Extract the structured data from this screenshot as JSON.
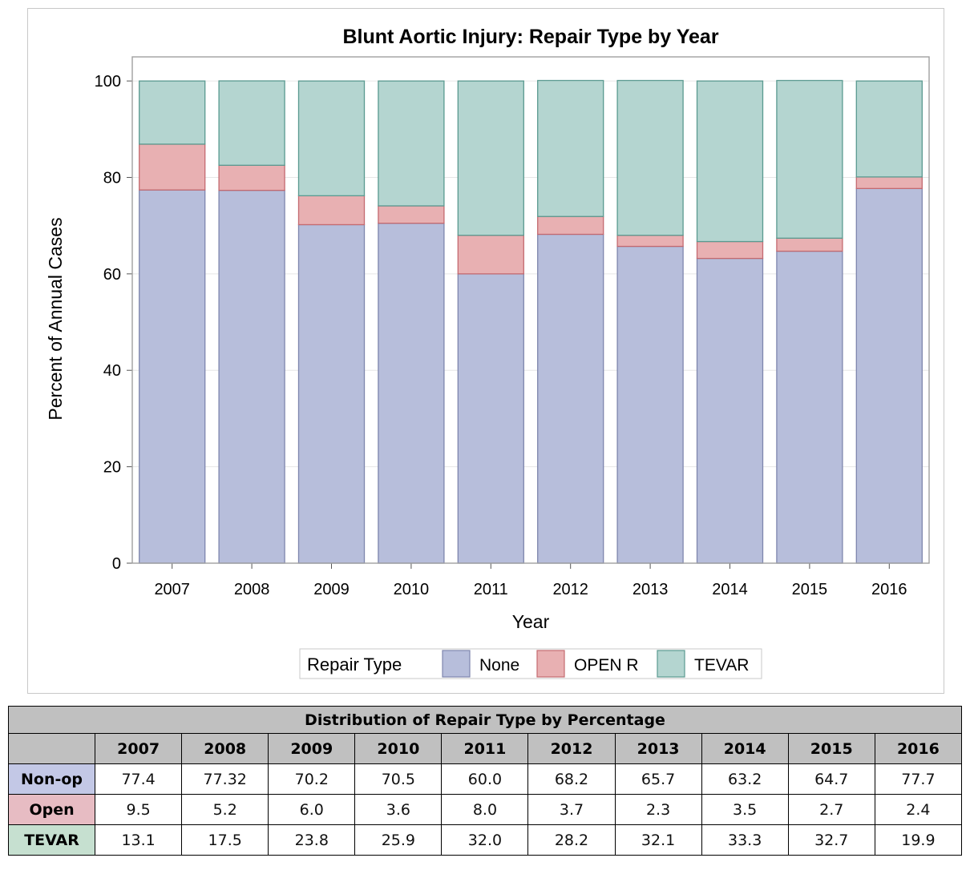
{
  "chart_data": {
    "type": "bar",
    "stacked": true,
    "title": "Blunt Aortic Injury: Repair Type by Year",
    "xlabel": "Year",
    "ylabel": "Percent of Annual Cases",
    "ylim": [
      0,
      105
    ],
    "yticks": [
      0,
      20,
      40,
      60,
      80,
      100
    ],
    "grid": true,
    "legend_title": "Repair Type",
    "legend_position": "bottom",
    "categories": [
      "2007",
      "2008",
      "2009",
      "2010",
      "2011",
      "2012",
      "2013",
      "2014",
      "2015",
      "2016"
    ],
    "series": [
      {
        "name": "None",
        "color": "#b7bedb",
        "stroke": "#7e86ad",
        "values": [
          77.4,
          77.32,
          70.2,
          70.5,
          60.0,
          68.2,
          65.7,
          63.2,
          64.7,
          77.7
        ]
      },
      {
        "name": "OPEN R",
        "color": "#e8b0b2",
        "stroke": "#c46a70",
        "values": [
          9.5,
          5.2,
          6.0,
          3.6,
          8.0,
          3.7,
          2.3,
          3.5,
          2.7,
          2.4
        ]
      },
      {
        "name": "TEVAR",
        "color": "#b4d5d0",
        "stroke": "#5a9a90",
        "values": [
          13.1,
          17.5,
          23.8,
          25.9,
          32.0,
          28.2,
          32.1,
          33.3,
          32.7,
          19.9
        ]
      }
    ]
  },
  "table": {
    "caption": "Distribution of Repair Type by Percentage",
    "years": [
      "2007",
      "2008",
      "2009",
      "2010",
      "2011",
      "2012",
      "2013",
      "2014",
      "2015",
      "2016"
    ],
    "rows": [
      {
        "label": "Non-op",
        "color": "#c3c8e6",
        "values": [
          "77.4",
          "77.32",
          "70.2",
          "70.5",
          "60.0",
          "68.2",
          "65.7",
          "63.2",
          "64.7",
          "77.7"
        ]
      },
      {
        "label": "Open",
        "color": "#e7bcc3",
        "values": [
          "9.5",
          "5.2",
          "6.0",
          "3.6",
          "8.0",
          "3.7",
          "2.3",
          "3.5",
          "2.7",
          "2.4"
        ]
      },
      {
        "label": "TEVAR",
        "color": "#c6e0d0",
        "values": [
          "13.1",
          "17.5",
          "23.8",
          "25.9",
          "32.0",
          "28.2",
          "32.1",
          "33.3",
          "32.7",
          "19.9"
        ]
      }
    ]
  }
}
